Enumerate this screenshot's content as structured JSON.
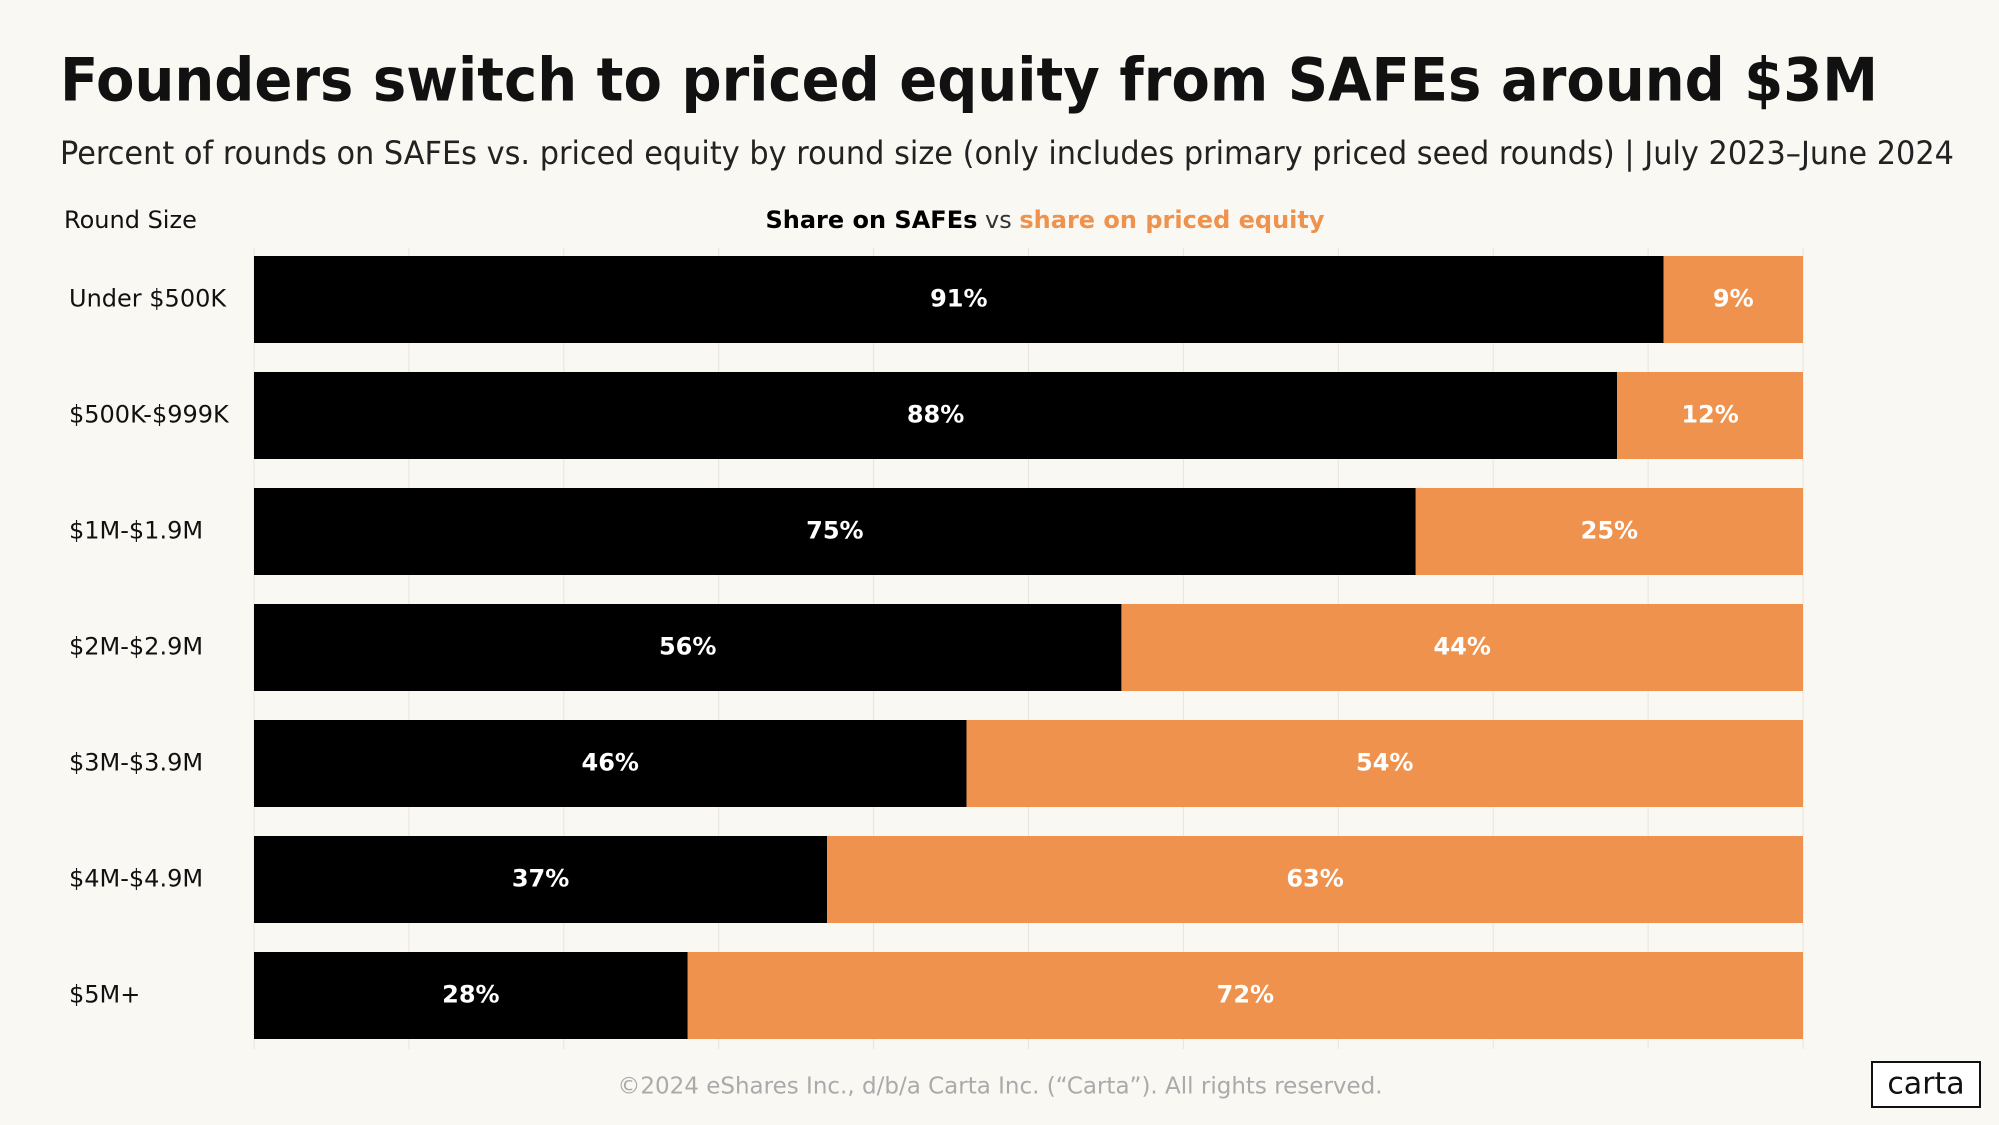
{
  "chart_data": {
    "type": "stacked-bar-horizontal",
    "title": "Founders switch to priced equity from SAFEs around $3M",
    "subtitle": "Percent of rounds on SAFEs vs. priced equity by round size (only includes primary priced seed rounds) | July 2023–June 2024",
    "y_label": "Round Size",
    "legend_joiner": "vs",
    "categories": [
      "Under $500K",
      "$500K-$999K",
      "$1M-$1.9M",
      "$2M-$2.9M",
      "$3M-$3.9M",
      "$4M-$4.9M",
      "$5M+"
    ],
    "series": [
      {
        "name": "Share on SAFEs",
        "color": "#000000",
        "values": [
          91,
          88,
          75,
          56,
          46,
          37,
          28
        ],
        "value_labels": [
          "91%",
          "88%",
          "75%",
          "56%",
          "46%",
          "37%",
          "28%"
        ]
      },
      {
        "name": "share on priced equity",
        "color": "#ee924d",
        "values": [
          9,
          12,
          25,
          44,
          54,
          63,
          72
        ],
        "value_labels": [
          "9%",
          "12%",
          "25%",
          "44%",
          "54%",
          "63%",
          "72%"
        ]
      }
    ],
    "xlim": [
      0,
      100
    ],
    "xticks": [
      0,
      10,
      20,
      30,
      40,
      50,
      60,
      70,
      80,
      90,
      100
    ],
    "grid": true,
    "footer": "©2024 eShares Inc., d/b/a Carta Inc. (“Carta”). All rights reserved.",
    "logo": "carta"
  }
}
